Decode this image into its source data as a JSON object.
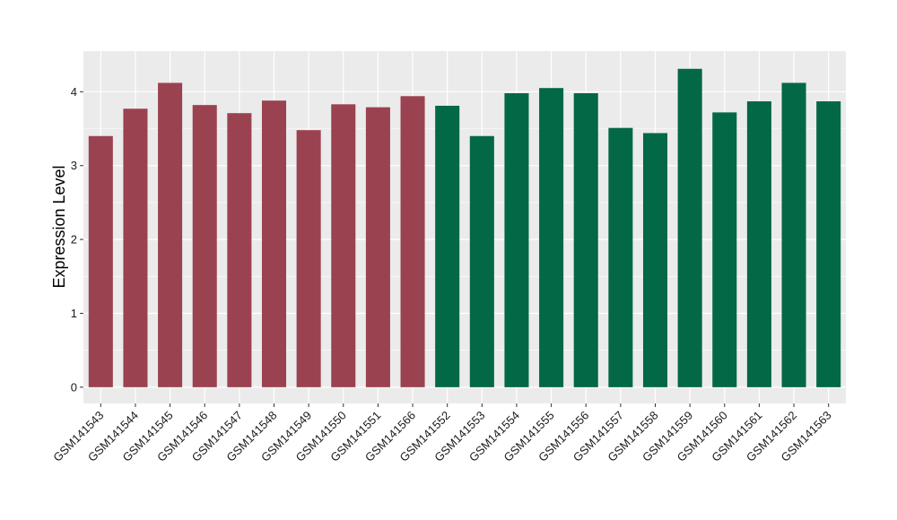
{
  "chart_data": {
    "type": "bar",
    "title": "",
    "xlabel": "",
    "ylabel": "Expression Level",
    "ylim": [
      -0.22,
      4.55
    ],
    "yticks": [
      0,
      1,
      2,
      3,
      4
    ],
    "grid": true,
    "legend": "none",
    "colors": {
      "group1": "#9b4250",
      "group2": "#036845",
      "panel": "#ebebeb",
      "gridline": "#ffffff"
    },
    "categories": [
      "GSM141543",
      "GSM141544",
      "GSM141545",
      "GSM141546",
      "GSM141547",
      "GSM141548",
      "GSM141549",
      "GSM141550",
      "GSM141551",
      "GSM141566",
      "GSM141552",
      "GSM141553",
      "GSM141554",
      "GSM141555",
      "GSM141556",
      "GSM141557",
      "GSM141558",
      "GSM141559",
      "GSM141560",
      "GSM141561",
      "GSM141562",
      "GSM141563"
    ],
    "values": [
      3.4,
      3.77,
      4.12,
      3.82,
      3.71,
      3.88,
      3.48,
      3.83,
      3.79,
      3.94,
      3.81,
      3.4,
      3.98,
      4.05,
      3.98,
      3.51,
      3.44,
      4.31,
      3.72,
      3.87,
      4.12,
      3.87
    ],
    "groups": [
      1,
      1,
      1,
      1,
      1,
      1,
      1,
      1,
      1,
      1,
      2,
      2,
      2,
      2,
      2,
      2,
      2,
      2,
      2,
      2,
      2,
      2
    ]
  }
}
